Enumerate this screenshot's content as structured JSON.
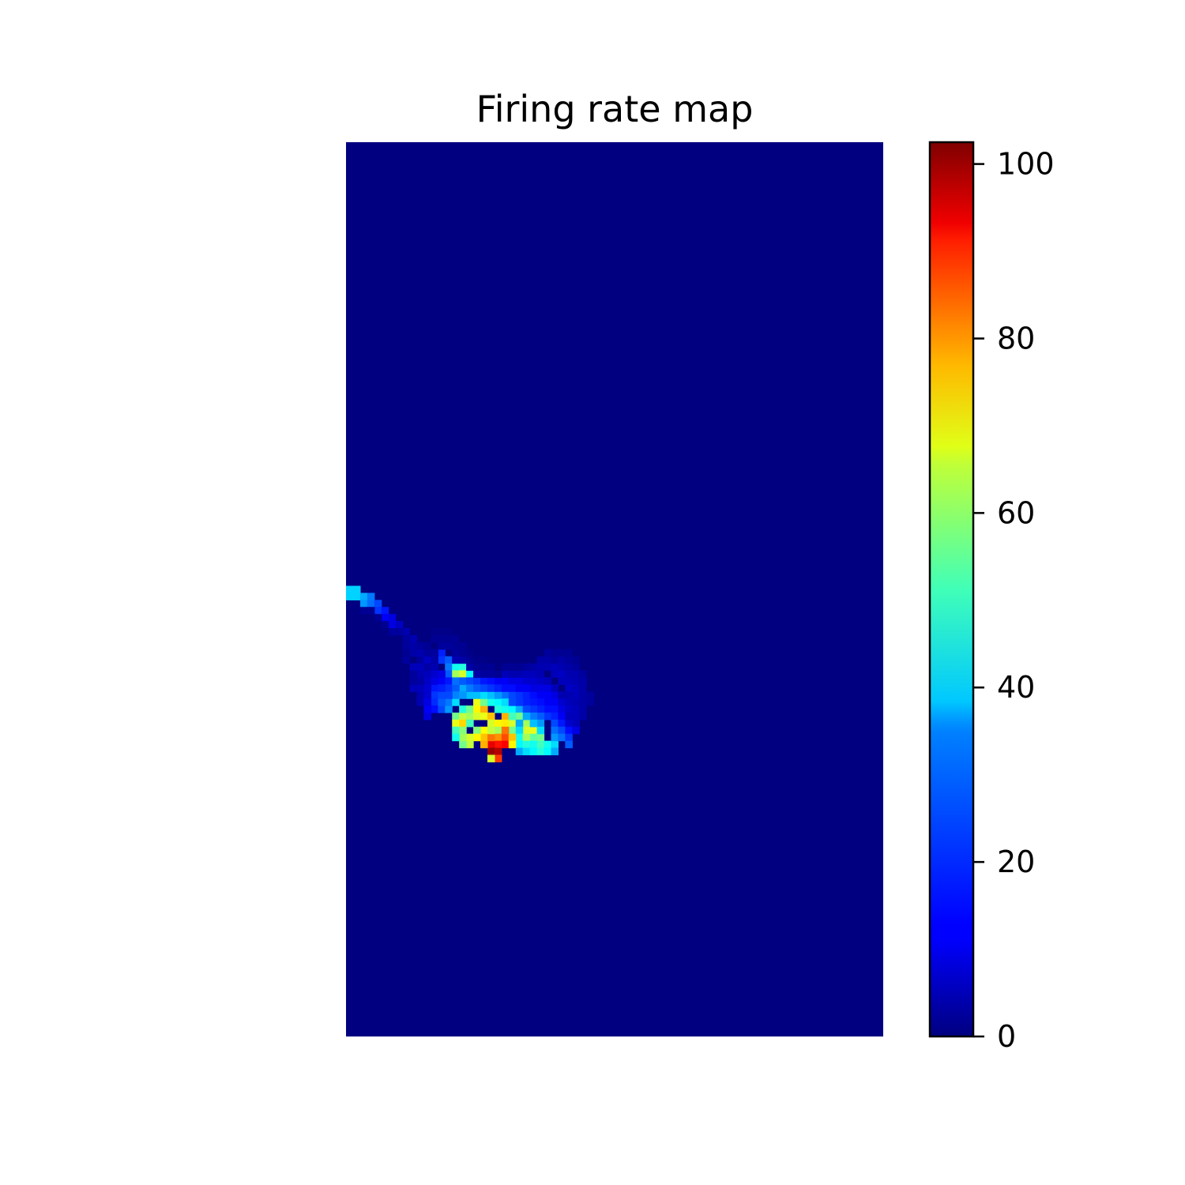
{
  "chart_data": {
    "type": "heatmap",
    "title": "Firing rate map",
    "xlabel": "",
    "ylabel": "",
    "colormap": "jet",
    "colorbar": {
      "range": [
        0,
        102.5
      ],
      "ticks": [
        0,
        20,
        40,
        60,
        80,
        100
      ],
      "tick_labels": [
        "0",
        "20",
        "40",
        "60",
        "80",
        "100"
      ]
    },
    "grid": false,
    "axes_visible": false,
    "n_cols": 76,
    "n_rows": 127,
    "background_value": 0,
    "cells": [
      [
        0,
        63,
        34
      ],
      [
        0,
        64,
        34
      ],
      [
        1,
        63,
        34
      ],
      [
        1,
        64,
        34
      ],
      [
        2,
        64,
        30
      ],
      [
        2,
        65,
        28
      ],
      [
        3,
        64,
        25
      ],
      [
        3,
        65,
        24
      ],
      [
        4,
        65,
        20
      ],
      [
        4,
        66,
        18
      ],
      [
        5,
        66,
        15
      ],
      [
        5,
        67,
        12
      ],
      [
        6,
        67,
        10
      ],
      [
        6,
        68,
        10
      ],
      [
        7,
        68,
        7
      ],
      [
        8,
        69,
        5
      ],
      [
        9,
        71,
        4
      ],
      [
        10,
        73,
        3
      ],
      [
        9,
        70,
        5
      ],
      [
        10,
        72,
        5
      ],
      [
        11,
        73,
        7
      ],
      [
        12,
        74,
        5
      ],
      [
        13,
        72,
        16
      ],
      [
        13,
        73,
        18
      ],
      [
        14,
        73,
        22
      ],
      [
        14,
        74,
        25
      ],
      [
        14,
        75,
        22
      ],
      [
        15,
        74,
        40
      ],
      [
        15,
        75,
        55
      ],
      [
        16,
        74,
        42
      ],
      [
        16,
        75,
        60
      ],
      [
        16,
        76,
        50
      ],
      [
        17,
        75,
        38
      ],
      [
        16,
        77,
        30
      ],
      [
        17,
        78,
        32
      ],
      [
        12,
        77,
        15
      ],
      [
        12,
        78,
        18
      ],
      [
        12,
        79,
        17
      ],
      [
        12,
        80,
        14
      ],
      [
        11,
        80,
        12
      ],
      [
        11,
        81,
        10
      ],
      [
        13,
        80,
        20
      ],
      [
        14,
        80,
        28
      ],
      [
        14,
        79,
        25
      ],
      [
        15,
        79,
        35
      ],
      [
        13,
        79,
        22
      ],
      [
        13,
        78,
        20
      ],
      [
        15,
        81,
        50
      ],
      [
        15,
        82,
        62
      ],
      [
        16,
        81,
        58
      ],
      [
        16,
        82,
        68
      ],
      [
        17,
        81,
        55
      ],
      [
        17,
        82,
        45
      ],
      [
        16,
        80,
        42
      ],
      [
        17,
        80,
        50
      ],
      [
        18,
        80,
        65
      ],
      [
        19,
        80,
        72
      ],
      [
        18,
        79,
        62
      ],
      [
        19,
        79,
        50
      ],
      [
        18,
        81,
        60
      ],
      [
        19,
        81,
        62
      ],
      [
        20,
        81,
        70
      ],
      [
        20,
        82,
        60
      ],
      [
        21,
        82,
        65
      ],
      [
        21,
        83,
        55
      ],
      [
        22,
        81,
        72
      ],
      [
        22,
        82,
        66
      ],
      [
        23,
        82,
        60
      ],
      [
        23,
        83,
        50
      ],
      [
        22,
        78,
        24
      ],
      [
        23,
        78,
        20
      ],
      [
        24,
        78,
        18
      ],
      [
        25,
        78,
        16
      ],
      [
        26,
        78,
        14
      ],
      [
        26,
        77,
        10
      ],
      [
        20,
        79,
        40
      ],
      [
        21,
        79,
        38
      ],
      [
        21,
        80,
        42
      ],
      [
        22,
        80,
        40
      ],
      [
        23,
        80,
        38
      ],
      [
        24,
        80,
        30
      ],
      [
        18,
        78,
        32
      ],
      [
        19,
        78,
        35
      ],
      [
        20,
        78,
        32
      ],
      [
        21,
        78,
        28
      ],
      [
        24,
        81,
        50
      ],
      [
        25,
        82,
        55
      ],
      [
        25,
        83,
        60
      ],
      [
        26,
        83,
        62
      ],
      [
        26,
        84,
        48
      ],
      [
        27,
        84,
        50
      ],
      [
        24,
        82,
        30
      ],
      [
        24,
        83,
        35
      ],
      [
        24,
        84,
        40
      ],
      [
        24,
        85,
        38
      ],
      [
        24,
        86,
        30
      ],
      [
        25,
        84,
        55
      ],
      [
        25,
        85,
        42
      ],
      [
        25,
        86,
        35
      ],
      [
        26,
        85,
        40
      ],
      [
        26,
        86,
        38
      ],
      [
        27,
        85,
        45
      ],
      [
        27,
        86,
        42
      ],
      [
        28,
        85,
        40
      ],
      [
        28,
        86,
        38
      ],
      [
        29,
        85,
        35
      ],
      [
        29,
        86,
        30
      ],
      [
        23,
        81,
        45
      ],
      [
        22,
        79,
        35
      ],
      [
        21,
        84,
        75
      ],
      [
        22,
        84,
        82
      ],
      [
        22,
        85,
        90
      ],
      [
        21,
        85,
        88
      ],
      [
        20,
        85,
        92
      ],
      [
        20,
        86,
        100
      ],
      [
        21,
        86,
        97
      ],
      [
        23,
        84,
        70
      ],
      [
        23,
        85,
        65
      ],
      [
        22,
        83,
        78
      ],
      [
        21,
        87,
        84
      ],
      [
        20,
        87,
        60
      ],
      [
        19,
        83,
        64
      ],
      [
        18,
        83,
        52
      ],
      [
        19,
        84,
        70
      ],
      [
        18,
        84,
        65
      ],
      [
        17,
        84,
        60
      ],
      [
        17,
        85,
        58
      ],
      [
        16,
        85,
        50
      ],
      [
        16,
        84,
        55
      ],
      [
        15,
        83,
        45
      ],
      [
        16,
        83,
        52
      ],
      [
        15,
        84,
        40
      ],
      [
        20,
        84,
        78
      ],
      [
        20,
        83,
        58
      ],
      [
        19,
        85,
        72
      ],
      [
        10,
        79,
        5
      ],
      [
        10,
        78,
        5
      ],
      [
        9,
        77,
        6
      ],
      [
        10,
        77,
        6
      ],
      [
        11,
        77,
        8
      ],
      [
        11,
        78,
        8
      ],
      [
        11,
        79,
        10
      ],
      [
        9,
        74,
        6
      ],
      [
        10,
        74,
        6
      ],
      [
        10,
        75,
        5
      ],
      [
        11,
        75,
        6
      ],
      [
        11,
        76,
        7
      ],
      [
        12,
        76,
        10
      ],
      [
        13,
        76,
        12
      ],
      [
        12,
        75,
        8
      ],
      [
        13,
        75,
        10
      ],
      [
        14,
        76,
        15
      ],
      [
        14,
        77,
        18
      ],
      [
        15,
        77,
        22
      ],
      [
        15,
        78,
        26
      ],
      [
        16,
        78,
        28
      ],
      [
        14,
        78,
        20
      ],
      [
        13,
        77,
        16
      ],
      [
        15,
        76,
        24
      ],
      [
        16,
        76,
        22
      ],
      [
        17,
        76,
        20
      ],
      [
        17,
        77,
        25
      ],
      [
        18,
        76,
        18
      ],
      [
        18,
        77,
        22
      ],
      [
        19,
        76,
        15
      ],
      [
        19,
        77,
        20
      ],
      [
        20,
        76,
        14
      ],
      [
        20,
        77,
        18
      ],
      [
        21,
        76,
        12
      ],
      [
        21,
        77,
        16
      ],
      [
        22,
        76,
        12
      ],
      [
        22,
        77,
        14
      ],
      [
        23,
        76,
        10
      ],
      [
        23,
        77,
        14
      ],
      [
        24,
        76,
        10
      ],
      [
        24,
        77,
        12
      ],
      [
        25,
        76,
        8
      ],
      [
        25,
        77,
        12
      ],
      [
        26,
        76,
        8
      ],
      [
        27,
        76,
        7
      ],
      [
        27,
        77,
        10
      ],
      [
        27,
        78,
        12
      ],
      [
        28,
        77,
        10
      ],
      [
        28,
        78,
        12
      ],
      [
        28,
        79,
        12
      ],
      [
        28,
        80,
        14
      ],
      [
        28,
        81,
        18
      ],
      [
        29,
        78,
        10
      ],
      [
        29,
        79,
        12
      ],
      [
        29,
        80,
        14
      ],
      [
        29,
        81,
        16
      ],
      [
        29,
        82,
        20
      ],
      [
        29,
        83,
        24
      ],
      [
        29,
        84,
        28
      ],
      [
        30,
        79,
        8
      ],
      [
        30,
        80,
        10
      ],
      [
        30,
        81,
        12
      ],
      [
        30,
        82,
        15
      ],
      [
        30,
        83,
        20
      ],
      [
        30,
        84,
        24
      ],
      [
        27,
        79,
        14
      ],
      [
        27,
        80,
        16
      ],
      [
        27,
        81,
        22
      ],
      [
        27,
        82,
        28
      ],
      [
        27,
        83,
        35
      ],
      [
        26,
        79,
        15
      ],
      [
        26,
        80,
        18
      ],
      [
        26,
        81,
        25
      ],
      [
        26,
        82,
        32
      ],
      [
        25,
        79,
        16
      ],
      [
        25,
        80,
        20
      ],
      [
        25,
        81,
        30
      ],
      [
        31,
        82,
        8
      ],
      [
        31,
        83,
        14
      ],
      [
        31,
        84,
        18
      ],
      [
        31,
        85,
        22
      ],
      [
        32,
        82,
        6
      ],
      [
        32,
        83,
        10
      ],
      [
        24,
        79,
        18
      ],
      [
        23,
        79,
        20
      ],
      [
        22,
        75,
        6
      ],
      [
        23,
        75,
        5
      ],
      [
        24,
        75,
        5
      ],
      [
        25,
        75,
        6
      ],
      [
        26,
        75,
        6
      ],
      [
        27,
        75,
        5
      ],
      [
        28,
        76,
        6
      ],
      [
        29,
        77,
        6
      ],
      [
        30,
        78,
        5
      ],
      [
        27,
        73,
        4
      ],
      [
        28,
        73,
        4
      ],
      [
        28,
        74,
        5
      ],
      [
        29,
        74,
        6
      ],
      [
        29,
        75,
        6
      ],
      [
        30,
        75,
        7
      ],
      [
        30,
        76,
        6
      ],
      [
        31,
        76,
        6
      ],
      [
        31,
        77,
        7
      ],
      [
        32,
        77,
        6
      ],
      [
        32,
        78,
        6
      ],
      [
        31,
        78,
        5
      ],
      [
        31,
        79,
        6
      ],
      [
        31,
        80,
        7
      ],
      [
        31,
        81,
        6
      ],
      [
        32,
        79,
        5
      ],
      [
        32,
        80,
        6
      ],
      [
        32,
        81,
        6
      ],
      [
        33,
        80,
        4
      ],
      [
        33,
        81,
        4
      ],
      [
        26,
        74,
        4
      ],
      [
        27,
        74,
        5
      ],
      [
        25,
        74,
        3
      ],
      [
        30,
        74,
        5
      ],
      [
        31,
        74,
        4
      ],
      [
        31,
        75,
        5
      ],
      [
        32,
        75,
        5
      ],
      [
        32,
        76,
        5
      ],
      [
        33,
        76,
        4
      ],
      [
        33,
        77,
        4
      ],
      [
        33,
        78,
        4
      ],
      [
        33,
        79,
        4
      ],
      [
        34,
        78,
        3
      ],
      [
        34,
        79,
        3
      ],
      [
        28,
        72,
        3
      ],
      [
        29,
        73,
        3
      ],
      [
        30,
        73,
        4
      ],
      [
        31,
        73,
        3
      ],
      [
        32,
        74,
        3
      ],
      [
        33,
        75,
        3
      ],
      [
        29,
        72,
        2
      ],
      [
        30,
        72,
        2
      ],
      [
        31,
        72,
        2
      ],
      [
        32,
        73,
        2
      ],
      [
        24,
        74,
        2
      ],
      [
        23,
        74,
        2
      ],
      [
        22,
        74,
        2
      ],
      [
        21,
        75,
        2
      ],
      [
        20,
        75,
        3
      ],
      [
        19,
        75,
        3
      ],
      [
        18,
        75,
        4
      ],
      [
        17,
        74,
        4
      ],
      [
        16,
        73,
        4
      ],
      [
        15,
        72,
        3
      ],
      [
        14,
        71,
        3
      ],
      [
        13,
        71,
        3
      ],
      [
        12,
        72,
        3
      ],
      [
        11,
        72,
        3
      ],
      [
        15,
        73,
        5
      ],
      [
        16,
        72,
        2
      ],
      [
        17,
        73,
        2
      ],
      [
        18,
        74,
        2
      ],
      [
        19,
        74,
        2
      ],
      [
        20,
        74,
        2
      ],
      [
        8,
        70,
        3
      ],
      [
        7,
        69,
        3
      ],
      [
        6,
        69,
        3
      ],
      [
        5,
        68,
        2
      ],
      [
        4,
        67,
        2
      ],
      [
        3,
        66,
        2
      ],
      [
        2,
        66,
        2
      ],
      [
        9,
        72,
        4
      ],
      [
        8,
        71,
        3
      ],
      [
        10,
        76,
        4
      ],
      [
        9,
        75,
        3
      ],
      [
        9,
        76,
        3
      ],
      [
        8,
        73,
        3
      ],
      [
        8,
        72,
        2
      ],
      [
        10,
        71,
        3
      ],
      [
        11,
        71,
        2
      ],
      [
        11,
        74,
        4
      ],
      [
        12,
        73,
        4
      ],
      [
        12,
        70,
        2
      ],
      [
        13,
        70,
        2
      ],
      [
        14,
        70,
        2
      ],
      [
        14,
        69,
        1
      ],
      [
        15,
        70,
        2
      ],
      [
        15,
        71,
        2
      ],
      [
        16,
        71,
        2
      ],
      [
        17,
        72,
        1
      ],
      [
        18,
        73,
        1
      ],
      [
        19,
        73,
        1
      ],
      [
        13,
        69,
        1
      ],
      [
        12,
        69,
        1
      ]
    ]
  },
  "colors": {
    "background": "#ffffff",
    "heatmap_zero": "#000080",
    "frame": "#000000"
  }
}
